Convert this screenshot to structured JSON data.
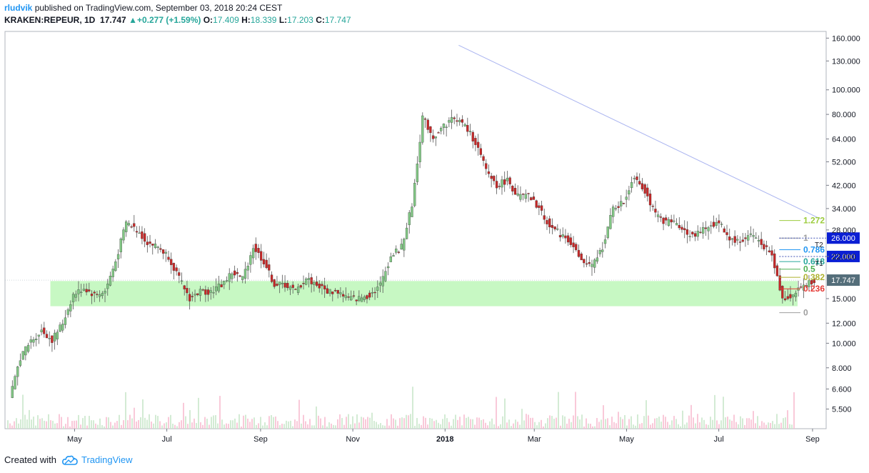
{
  "header": {
    "author": "rludvik",
    "published": "published on TradingView.com, September 03, 2018 20:24 CEST",
    "symbol": "KRAKEN:REPEUR, 1D",
    "last": "17.747",
    "change": "+0.277 (+1.59%)",
    "open_label": "O:",
    "open": "17.409",
    "high_label": "H:",
    "high": "18.339",
    "low_label": "L:",
    "low": "17.203",
    "close_label": "C:",
    "close": "17.747"
  },
  "footer": {
    "created_with": "Created with",
    "brand": "TradingView"
  },
  "colors": {
    "up": "#26a69a",
    "down": "#ef5350",
    "candle_up": "#81c784",
    "candle_down": "#c62828",
    "zone": "#b9f6b4",
    "trendline": "#aab4f0",
    "price_label_bg": "#546e7a",
    "target_bg": "#0b1fd4"
  },
  "chart_data": {
    "type": "candlestick",
    "y_scale": "log",
    "ylim": [
      4.6,
      170
    ],
    "y_ticks": [
      "160.000",
      "130.000",
      "100.000",
      "80.000",
      "64.000",
      "52.000",
      "42.000",
      "34.000",
      "28.000",
      "22.000",
      "15.000",
      "12.000",
      "10.000",
      "8.000",
      "6.600",
      "5.500"
    ],
    "x_ticks": [
      "May",
      "Jul",
      "Sep",
      "Nov",
      "2018",
      "Mar",
      "May",
      "Jul",
      "Sep"
    ],
    "last_price_label": "17.747",
    "targets": [
      {
        "name": "T2",
        "value": 26.0,
        "label": "26.000"
      },
      {
        "name": "T1",
        "value": 22.0,
        "label": "22.000"
      }
    ],
    "fib_levels": [
      {
        "label": "1.272",
        "value": 30.5,
        "color": "#9ccc3c"
      },
      {
        "label": "1",
        "value": 26.0,
        "color": "#9e9e9e"
      },
      {
        "label": "0.786",
        "value": 23.4,
        "color": "#2196f3"
      },
      {
        "label": "0.618",
        "value": 21.0,
        "color": "#26a69a"
      },
      {
        "label": "0.5",
        "value": 19.6,
        "color": "#4caf50"
      },
      {
        "label": "0.382",
        "value": 18.2,
        "color": "#aeb22d"
      },
      {
        "label": "0.236",
        "value": 16.4,
        "color": "#e53935"
      },
      {
        "label": "0",
        "value": 13.2,
        "color": "#9e9e9e"
      }
    ],
    "support_zone": {
      "low": 14.0,
      "high": 17.6
    },
    "trendline": [
      {
        "x": "2018-01-10",
        "y": 150
      },
      {
        "x": "2018-09-06",
        "y": 31
      }
    ],
    "close_series": [
      {
        "x": "2017-03-20",
        "close": 6.0
      },
      {
        "x": "2017-03-27",
        "close": 8.8
      },
      {
        "x": "2017-04-03",
        "close": 10.2
      },
      {
        "x": "2017-04-10",
        "close": 11.2
      },
      {
        "x": "2017-04-17",
        "close": 10.3
      },
      {
        "x": "2017-04-24",
        "close": 12.0
      },
      {
        "x": "2017-05-01",
        "close": 15.5
      },
      {
        "x": "2017-05-08",
        "close": 16.5
      },
      {
        "x": "2017-05-15",
        "close": 15.5
      },
      {
        "x": "2017-05-22",
        "close": 16.0
      },
      {
        "x": "2017-05-29",
        "close": 21.0
      },
      {
        "x": "2017-06-05",
        "close": 30.0
      },
      {
        "x": "2017-06-12",
        "close": 28.0
      },
      {
        "x": "2017-06-19",
        "close": 25.0
      },
      {
        "x": "2017-06-26",
        "close": 24.0
      },
      {
        "x": "2017-07-03",
        "close": 22.0
      },
      {
        "x": "2017-07-10",
        "close": 18.0
      },
      {
        "x": "2017-07-17",
        "close": 15.0
      },
      {
        "x": "2017-07-24",
        "close": 16.0
      },
      {
        "x": "2017-07-31",
        "close": 16.0
      },
      {
        "x": "2017-08-07",
        "close": 17.0
      },
      {
        "x": "2017-08-14",
        "close": 19.0
      },
      {
        "x": "2017-08-21",
        "close": 18.0
      },
      {
        "x": "2017-08-28",
        "close": 24.0
      },
      {
        "x": "2017-09-04",
        "close": 21.0
      },
      {
        "x": "2017-09-11",
        "close": 17.0
      },
      {
        "x": "2017-09-18",
        "close": 17.0
      },
      {
        "x": "2017-09-25",
        "close": 16.0
      },
      {
        "x": "2017-10-02",
        "close": 18.0
      },
      {
        "x": "2017-10-09",
        "close": 17.0
      },
      {
        "x": "2017-10-16",
        "close": 16.0
      },
      {
        "x": "2017-10-23",
        "close": 16.0
      },
      {
        "x": "2017-10-30",
        "close": 15.0
      },
      {
        "x": "2017-11-06",
        "close": 15.0
      },
      {
        "x": "2017-11-13",
        "close": 15.5
      },
      {
        "x": "2017-11-20",
        "close": 17.0
      },
      {
        "x": "2017-11-27",
        "close": 22.0
      },
      {
        "x": "2017-12-04",
        "close": 24.0
      },
      {
        "x": "2017-12-11",
        "close": 35.0
      },
      {
        "x": "2017-12-18",
        "close": 78.0
      },
      {
        "x": "2017-12-25",
        "close": 65.0
      },
      {
        "x": "2018-01-01",
        "close": 72.0
      },
      {
        "x": "2018-01-08",
        "close": 78.0
      },
      {
        "x": "2018-01-15",
        "close": 72.0
      },
      {
        "x": "2018-01-22",
        "close": 62.0
      },
      {
        "x": "2018-01-29",
        "close": 48.0
      },
      {
        "x": "2018-02-05",
        "close": 42.0
      },
      {
        "x": "2018-02-12",
        "close": 44.0
      },
      {
        "x": "2018-02-19",
        "close": 38.0
      },
      {
        "x": "2018-02-26",
        "close": 38.0
      },
      {
        "x": "2018-03-05",
        "close": 34.0
      },
      {
        "x": "2018-03-12",
        "close": 29.0
      },
      {
        "x": "2018-03-19",
        "close": 27.0
      },
      {
        "x": "2018-03-26",
        "close": 25.0
      },
      {
        "x": "2018-04-02",
        "close": 21.0
      },
      {
        "x": "2018-04-09",
        "close": 20.0
      },
      {
        "x": "2018-04-16",
        "close": 24.0
      },
      {
        "x": "2018-04-23",
        "close": 34.0
      },
      {
        "x": "2018-04-30",
        "close": 36.0
      },
      {
        "x": "2018-05-07",
        "close": 46.0
      },
      {
        "x": "2018-05-14",
        "close": 40.0
      },
      {
        "x": "2018-05-21",
        "close": 32.0
      },
      {
        "x": "2018-05-28",
        "close": 30.0
      },
      {
        "x": "2018-06-04",
        "close": 30.0
      },
      {
        "x": "2018-06-11",
        "close": 27.0
      },
      {
        "x": "2018-06-18",
        "close": 27.0
      },
      {
        "x": "2018-06-25",
        "close": 29.0
      },
      {
        "x": "2018-07-02",
        "close": 30.0
      },
      {
        "x": "2018-07-09",
        "close": 26.0
      },
      {
        "x": "2018-07-16",
        "close": 25.0
      },
      {
        "x": "2018-07-23",
        "close": 27.0
      },
      {
        "x": "2018-07-30",
        "close": 25.0
      },
      {
        "x": "2018-08-06",
        "close": 22.0
      },
      {
        "x": "2018-08-13",
        "close": 15.0
      },
      {
        "x": "2018-08-20",
        "close": 15.5
      },
      {
        "x": "2018-08-27",
        "close": 17.0
      },
      {
        "x": "2018-09-03",
        "close": 17.747
      }
    ]
  }
}
